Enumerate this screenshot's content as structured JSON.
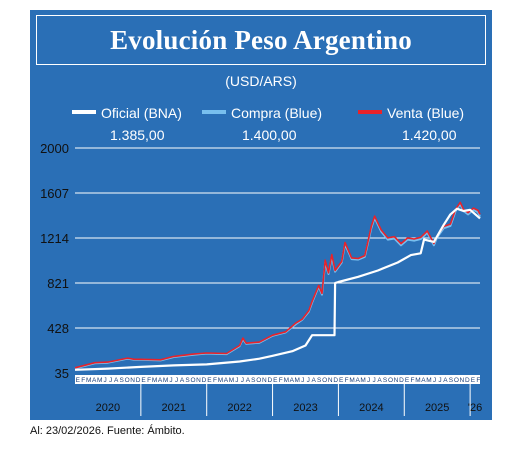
{
  "header": {
    "title": "Evolución Peso Argentino",
    "subtitle": "(USD/ARS)"
  },
  "legend": {
    "oficial": {
      "label": "Oficial (BNA)",
      "value": "1.385,00"
    },
    "compra": {
      "label": "Compra (Blue)",
      "value": "1.400,00"
    },
    "venta": {
      "label": "Venta (Blue)",
      "value": "1.420,00"
    }
  },
  "footnote": "Al: 23/02/2026. Fuente: Ámbito.",
  "colors": {
    "background": "#2a6fb6",
    "oficial": "#ffffff",
    "compra": "#78bfee",
    "venta": "#e8232a",
    "grid": "#ffffff"
  },
  "chart_data": {
    "type": "line",
    "ylim": [
      35,
      2000
    ],
    "yticks": [
      "35",
      "428",
      "821",
      "1214",
      "1607",
      "2000"
    ],
    "month_letters": "EFMAMJJASOND",
    "years": [
      "2020",
      "2021",
      "2022",
      "2023",
      "2024",
      "2025",
      "'26"
    ],
    "series": [
      {
        "name": "Oficial (BNA)",
        "points": [
          [
            2020.0,
            63
          ],
          [
            2020.5,
            73
          ],
          [
            2021.0,
            88
          ],
          [
            2021.5,
            101
          ],
          [
            2022.0,
            110
          ],
          [
            2022.5,
            135
          ],
          [
            2022.8,
            160
          ],
          [
            2023.0,
            185
          ],
          [
            2023.3,
            225
          ],
          [
            2023.5,
            275
          ],
          [
            2023.6,
            365
          ],
          [
            2023.85,
            365
          ],
          [
            2023.94,
            365
          ],
          [
            2023.95,
            820
          ],
          [
            2024.0,
            830
          ],
          [
            2024.3,
            875
          ],
          [
            2024.6,
            930
          ],
          [
            2024.9,
            1000
          ],
          [
            2025.1,
            1065
          ],
          [
            2025.25,
            1080
          ],
          [
            2025.3,
            1200
          ],
          [
            2025.45,
            1180
          ],
          [
            2025.6,
            1330
          ],
          [
            2025.7,
            1420
          ],
          [
            2025.8,
            1470
          ],
          [
            2025.9,
            1450
          ],
          [
            2026.0,
            1460
          ],
          [
            2026.15,
            1385
          ]
        ]
      },
      {
        "name": "Compra (Blue)",
        "points": [
          [
            2020.0,
            75
          ],
          [
            2020.3,
            120
          ],
          [
            2020.5,
            125
          ],
          [
            2020.8,
            160
          ],
          [
            2020.9,
            150
          ],
          [
            2021.0,
            150
          ],
          [
            2021.3,
            145
          ],
          [
            2021.5,
            175
          ],
          [
            2021.8,
            195
          ],
          [
            2022.0,
            205
          ],
          [
            2022.3,
            200
          ],
          [
            2022.5,
            270
          ],
          [
            2022.55,
            330
          ],
          [
            2022.6,
            290
          ],
          [
            2022.8,
            300
          ],
          [
            2023.0,
            360
          ],
          [
            2023.2,
            390
          ],
          [
            2023.35,
            460
          ],
          [
            2023.45,
            500
          ],
          [
            2023.55,
            570
          ],
          [
            2023.6,
            650
          ],
          [
            2023.7,
            790
          ],
          [
            2023.75,
            720
          ],
          [
            2023.8,
            1000
          ],
          [
            2023.85,
            900
          ],
          [
            2023.9,
            1050
          ],
          [
            2023.95,
            920
          ],
          [
            2024.05,
            1000
          ],
          [
            2024.1,
            1160
          ],
          [
            2024.2,
            1030
          ],
          [
            2024.3,
            1025
          ],
          [
            2024.4,
            1050
          ],
          [
            2024.5,
            1300
          ],
          [
            2024.55,
            1390
          ],
          [
            2024.65,
            1270
          ],
          [
            2024.75,
            1200
          ],
          [
            2024.85,
            1210
          ],
          [
            2024.95,
            1150
          ],
          [
            2025.05,
            1200
          ],
          [
            2025.15,
            1190
          ],
          [
            2025.25,
            1205
          ],
          [
            2025.35,
            1260
          ],
          [
            2025.45,
            1150
          ],
          [
            2025.5,
            1220
          ],
          [
            2025.6,
            1300
          ],
          [
            2025.7,
            1320
          ],
          [
            2025.78,
            1450
          ],
          [
            2025.85,
            1510
          ],
          [
            2025.9,
            1450
          ],
          [
            2025.97,
            1420
          ],
          [
            2026.05,
            1460
          ],
          [
            2026.12,
            1440
          ],
          [
            2026.15,
            1400
          ]
        ]
      },
      {
        "name": "Venta (Blue)",
        "points": [
          [
            2020.0,
            80
          ],
          [
            2020.3,
            125
          ],
          [
            2020.5,
            130
          ],
          [
            2020.8,
            165
          ],
          [
            2020.9,
            155
          ],
          [
            2021.0,
            155
          ],
          [
            2021.3,
            150
          ],
          [
            2021.5,
            180
          ],
          [
            2021.8,
            200
          ],
          [
            2022.0,
            210
          ],
          [
            2022.3,
            205
          ],
          [
            2022.5,
            275
          ],
          [
            2022.55,
            340
          ],
          [
            2022.6,
            295
          ],
          [
            2022.8,
            305
          ],
          [
            2023.0,
            365
          ],
          [
            2023.2,
            395
          ],
          [
            2023.35,
            470
          ],
          [
            2023.45,
            505
          ],
          [
            2023.55,
            580
          ],
          [
            2023.6,
            660
          ],
          [
            2023.7,
            800
          ],
          [
            2023.75,
            730
          ],
          [
            2023.8,
            1020
          ],
          [
            2023.85,
            910
          ],
          [
            2023.9,
            1070
          ],
          [
            2023.95,
            930
          ],
          [
            2024.05,
            1010
          ],
          [
            2024.1,
            1175
          ],
          [
            2024.2,
            1040
          ],
          [
            2024.3,
            1035
          ],
          [
            2024.4,
            1060
          ],
          [
            2024.5,
            1315
          ],
          [
            2024.55,
            1405
          ],
          [
            2024.65,
            1285
          ],
          [
            2024.75,
            1215
          ],
          [
            2024.85,
            1225
          ],
          [
            2024.95,
            1165
          ],
          [
            2025.05,
            1215
          ],
          [
            2025.15,
            1205
          ],
          [
            2025.25,
            1220
          ],
          [
            2025.35,
            1275
          ],
          [
            2025.45,
            1165
          ],
          [
            2025.5,
            1235
          ],
          [
            2025.6,
            1315
          ],
          [
            2025.7,
            1335
          ],
          [
            2025.78,
            1465
          ],
          [
            2025.85,
            1525
          ],
          [
            2025.9,
            1465
          ],
          [
            2025.97,
            1435
          ],
          [
            2026.05,
            1475
          ],
          [
            2026.12,
            1455
          ],
          [
            2026.15,
            1420
          ]
        ]
      }
    ]
  }
}
